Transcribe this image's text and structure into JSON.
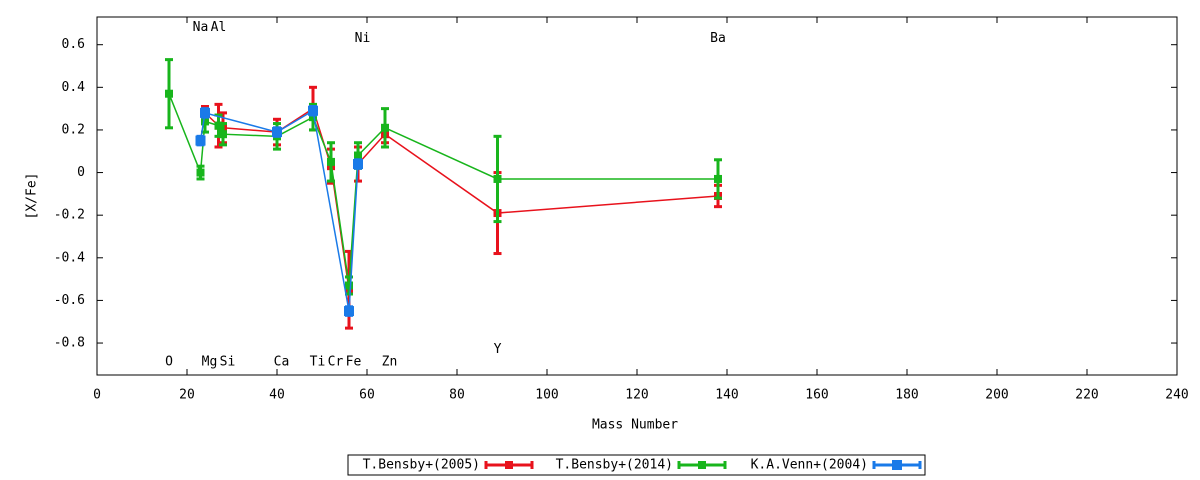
{
  "chart_data": {
    "type": "errorbar-line",
    "xlabel": "Mass Number",
    "ylabel": "[X/Fe]",
    "xlim": [
      0,
      240
    ],
    "ylim": [
      -0.95,
      0.73
    ],
    "xticks": [
      0,
      20,
      40,
      60,
      80,
      100,
      120,
      140,
      160,
      180,
      200,
      220,
      240
    ],
    "yticks": [
      -0.8,
      -0.6,
      -0.4,
      -0.2,
      0,
      0.2,
      0.4,
      0.6
    ],
    "series": [
      {
        "name": "T.Bensby+(2005)",
        "color": "#e8121c",
        "marker": "plus",
        "x": [
          24,
          27,
          28,
          40,
          48,
          52,
          56,
          58,
          64,
          89,
          138
        ],
        "values": [
          0.28,
          0.22,
          0.21,
          0.19,
          0.3,
          0.03,
          -0.55,
          0.04,
          0.18,
          -0.19,
          -0.11
        ],
        "errors": [
          0.03,
          0.1,
          0.07,
          0.06,
          0.1,
          0.08,
          0.18,
          0.08,
          0.04,
          0.19,
          0.05
        ]
      },
      {
        "name": "T.Bensby+(2014)",
        "color": "#18b51c",
        "marker": "cross",
        "x": [
          16,
          23,
          24,
          27,
          28,
          40,
          48,
          52,
          56,
          58,
          64,
          89,
          138
        ],
        "values": [
          0.37,
          0.0,
          0.24,
          0.22,
          0.18,
          0.17,
          0.26,
          0.05,
          -0.53,
          0.08,
          0.21,
          -0.03,
          -0.03
        ],
        "errors": [
          0.16,
          0.03,
          0.05,
          0.05,
          0.05,
          0.06,
          0.06,
          0.09,
          0.04,
          0.06,
          0.09,
          0.2,
          0.09
        ]
      },
      {
        "name": "K.A.Venn+(2004)",
        "color": "#1a7ae8",
        "marker": "square",
        "x": [
          23,
          24,
          40,
          48,
          56,
          58
        ],
        "values": [
          0.15,
          0.28,
          0.19,
          0.29,
          -0.65,
          0.04
        ],
        "errors": [
          0.02,
          0.02,
          0.02,
          0.02,
          0.02,
          0.02
        ]
      }
    ],
    "annotations": [
      {
        "text": "Na",
        "x": 23,
        "y": 0.68
      },
      {
        "text": "Al",
        "x": 27,
        "y": 0.68
      },
      {
        "text": "Ni",
        "x": 59,
        "y": 0.63
      },
      {
        "text": "Ba",
        "x": 138,
        "y": 0.63
      },
      {
        "text": "O",
        "x": 16,
        "y": -0.89
      },
      {
        "text": "Mg",
        "x": 25,
        "y": -0.89
      },
      {
        "text": "Si",
        "x": 29,
        "y": -0.89
      },
      {
        "text": "Ca",
        "x": 41,
        "y": -0.89
      },
      {
        "text": "Ti",
        "x": 49,
        "y": -0.89
      },
      {
        "text": "Cr",
        "x": 53,
        "y": -0.89
      },
      {
        "text": "Fe",
        "x": 57,
        "y": -0.89
      },
      {
        "text": "Zn",
        "x": 65,
        "y": -0.89
      },
      {
        "text": "Y",
        "x": 89,
        "y": -0.83
      }
    ]
  }
}
